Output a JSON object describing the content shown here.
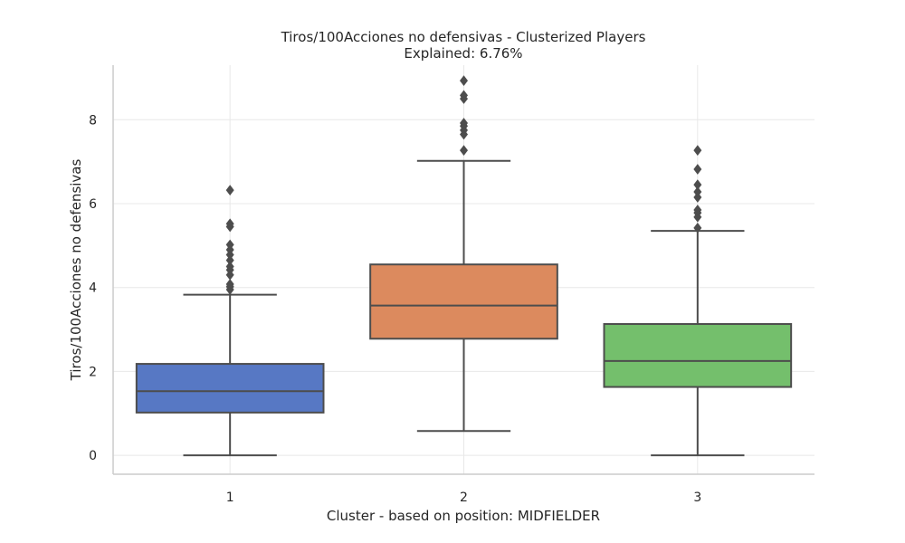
{
  "chart_data": {
    "type": "box",
    "title": "Tiros/100Acciones no defensivas - Clusterized Players",
    "subtitle": "Explained: 6.76%",
    "xlabel": "Cluster - based on position: MIDFIELDER",
    "ylabel": "Tiros/100Acciones no defensivas",
    "ylim": [
      -0.45,
      9.3
    ],
    "yticks": [
      0,
      2,
      4,
      6,
      8
    ],
    "grid": true,
    "categories": [
      "1",
      "2",
      "3"
    ],
    "boxes": [
      {
        "category": "1",
        "color": "#4c72b0",
        "fill": "#5778c4",
        "whisker_low": 0.0,
        "q1": 1.02,
        "median": 1.53,
        "q3": 2.18,
        "whisker_high": 3.83,
        "outliers": [
          3.95,
          4.02,
          4.08,
          4.3,
          4.42,
          4.5,
          4.65,
          4.78,
          4.9,
          5.02,
          5.45,
          5.52,
          6.32
        ]
      },
      {
        "category": "2",
        "color": "#dd8452",
        "fill": "#dc8a5e",
        "whisker_low": 0.58,
        "q1": 2.78,
        "median": 3.57,
        "q3": 4.55,
        "whisker_high": 7.02,
        "outliers": [
          7.27,
          7.65,
          7.75,
          7.85,
          7.92,
          8.5,
          8.58,
          8.93
        ]
      },
      {
        "category": "3",
        "color": "#55a868",
        "fill": "#74bf6c",
        "whisker_low": 0.0,
        "q1": 1.63,
        "median": 2.25,
        "q3": 3.13,
        "whisker_high": 5.35,
        "outliers": [
          5.42,
          5.68,
          5.78,
          5.85,
          6.15,
          6.28,
          6.45,
          6.82,
          7.27
        ]
      }
    ]
  }
}
